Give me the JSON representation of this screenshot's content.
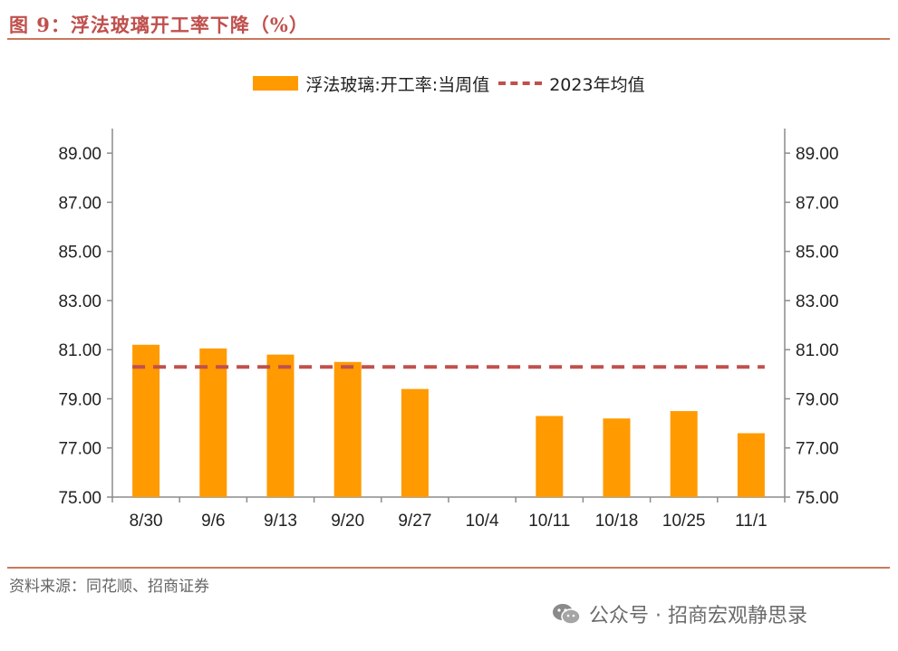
{
  "title": "图 9：浮法玻璃开工率下降（%）",
  "source": "资料来源：同花顺、招商证券",
  "watermark": "公众号 · 招商宏观静思录",
  "chart_data": {
    "type": "bar",
    "title": "图 9：浮法玻璃开工率下降（%）",
    "categories": [
      "8/30",
      "9/6",
      "9/13",
      "9/20",
      "9/27",
      "10/4",
      "10/11",
      "10/18",
      "10/25",
      "11/1"
    ],
    "series": [
      {
        "name": "浮法玻璃:开工率:当周值",
        "type": "bar",
        "color": "#ff9a00",
        "values": [
          81.2,
          81.05,
          80.8,
          80.5,
          79.4,
          null,
          78.3,
          78.2,
          78.5,
          77.6
        ]
      },
      {
        "name": "2023年均值",
        "type": "line",
        "style": "dashed",
        "color": "#c0504d",
        "values": [
          80.3,
          80.3,
          80.3,
          80.3,
          80.3,
          80.3,
          80.3,
          80.3,
          80.3,
          80.3
        ]
      }
    ],
    "ylim": [
      75,
      90
    ],
    "yticks": [
      "75.00",
      "77.00",
      "79.00",
      "81.00",
      "83.00",
      "85.00",
      "87.00",
      "89.00"
    ],
    "y_axis_both_sides": true,
    "grid": false,
    "legend_position": "top-center"
  }
}
